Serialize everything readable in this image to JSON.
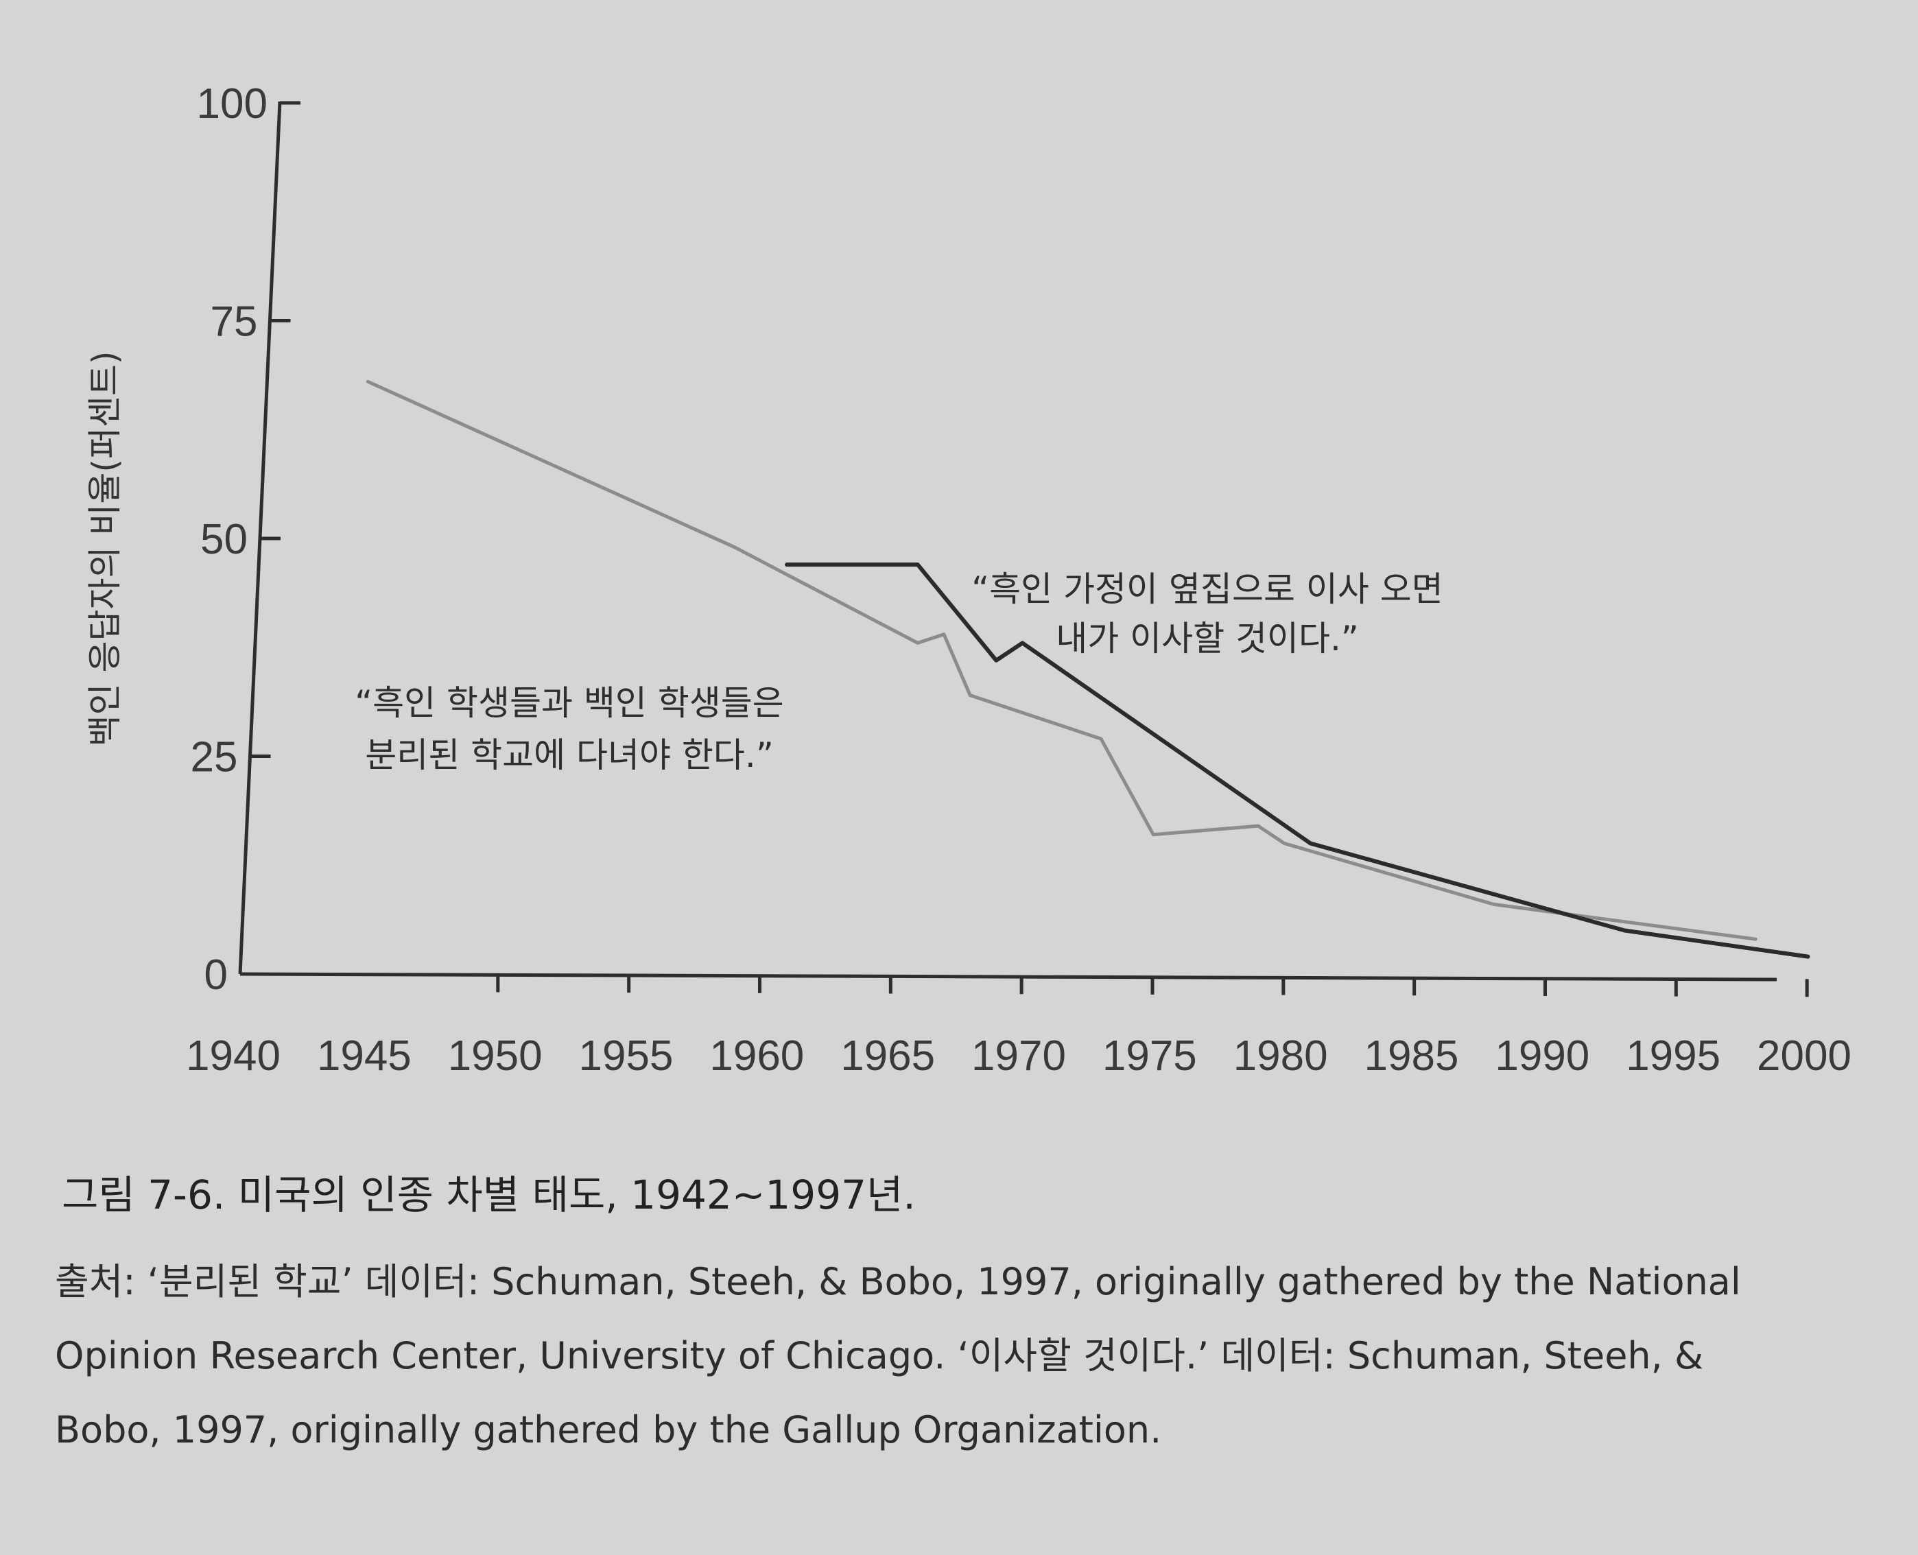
{
  "chart_data": {
    "type": "line",
    "ylabel": "백인 응답자의 비율(퍼센트)",
    "xlabel": "",
    "xlim": [
      1940,
      2000
    ],
    "ylim": [
      0,
      100
    ],
    "x_ticks": [
      1940,
      1945,
      1950,
      1955,
      1960,
      1965,
      1970,
      1975,
      1980,
      1985,
      1990,
      1995,
      2000
    ],
    "y_ticks": [
      0,
      25,
      50,
      75,
      100
    ],
    "grid": false,
    "series": [
      {
        "name": "“흑인 학생들과 백인 학생들은 분리된 학교에 다녀야 한다.”",
        "color": "#8c8c8c",
        "points": [
          [
            1942,
            68
          ],
          [
            1956,
            49
          ],
          [
            1963,
            38
          ],
          [
            1964,
            39
          ],
          [
            1965,
            32
          ],
          [
            1970,
            27
          ],
          [
            1972,
            16
          ],
          [
            1976,
            17
          ],
          [
            1977,
            15
          ],
          [
            1985,
            8
          ],
          [
            1990,
            6
          ],
          [
            1995,
            4
          ]
        ]
      },
      {
        "name": "“흑인 가정이 옆집으로 이사 오면 내가 이사할 것이다.”",
        "color": "#2b2b2b",
        "points": [
          [
            1958,
            47
          ],
          [
            1963,
            47
          ],
          [
            1966,
            36
          ],
          [
            1967,
            38
          ],
          [
            1978,
            15
          ],
          [
            1990,
            5
          ],
          [
            1997,
            2
          ]
        ]
      }
    ]
  },
  "caption": {
    "title": "그림 7-6. 미국의 인종 차별 태도, 1942~1997년.",
    "source_lines": [
      "출처: ‘분리된 학교’ 데이터: Schuman, Steeh, & Bobo, 1997, originally gathered by the National",
      "Opinion Research Center, University of Chicago. ‘이사할 것이다.’ 데이터: Schuman, Steeh, &",
      "Bobo, 1997, originally gathered by the Gallup Organization."
    ]
  }
}
